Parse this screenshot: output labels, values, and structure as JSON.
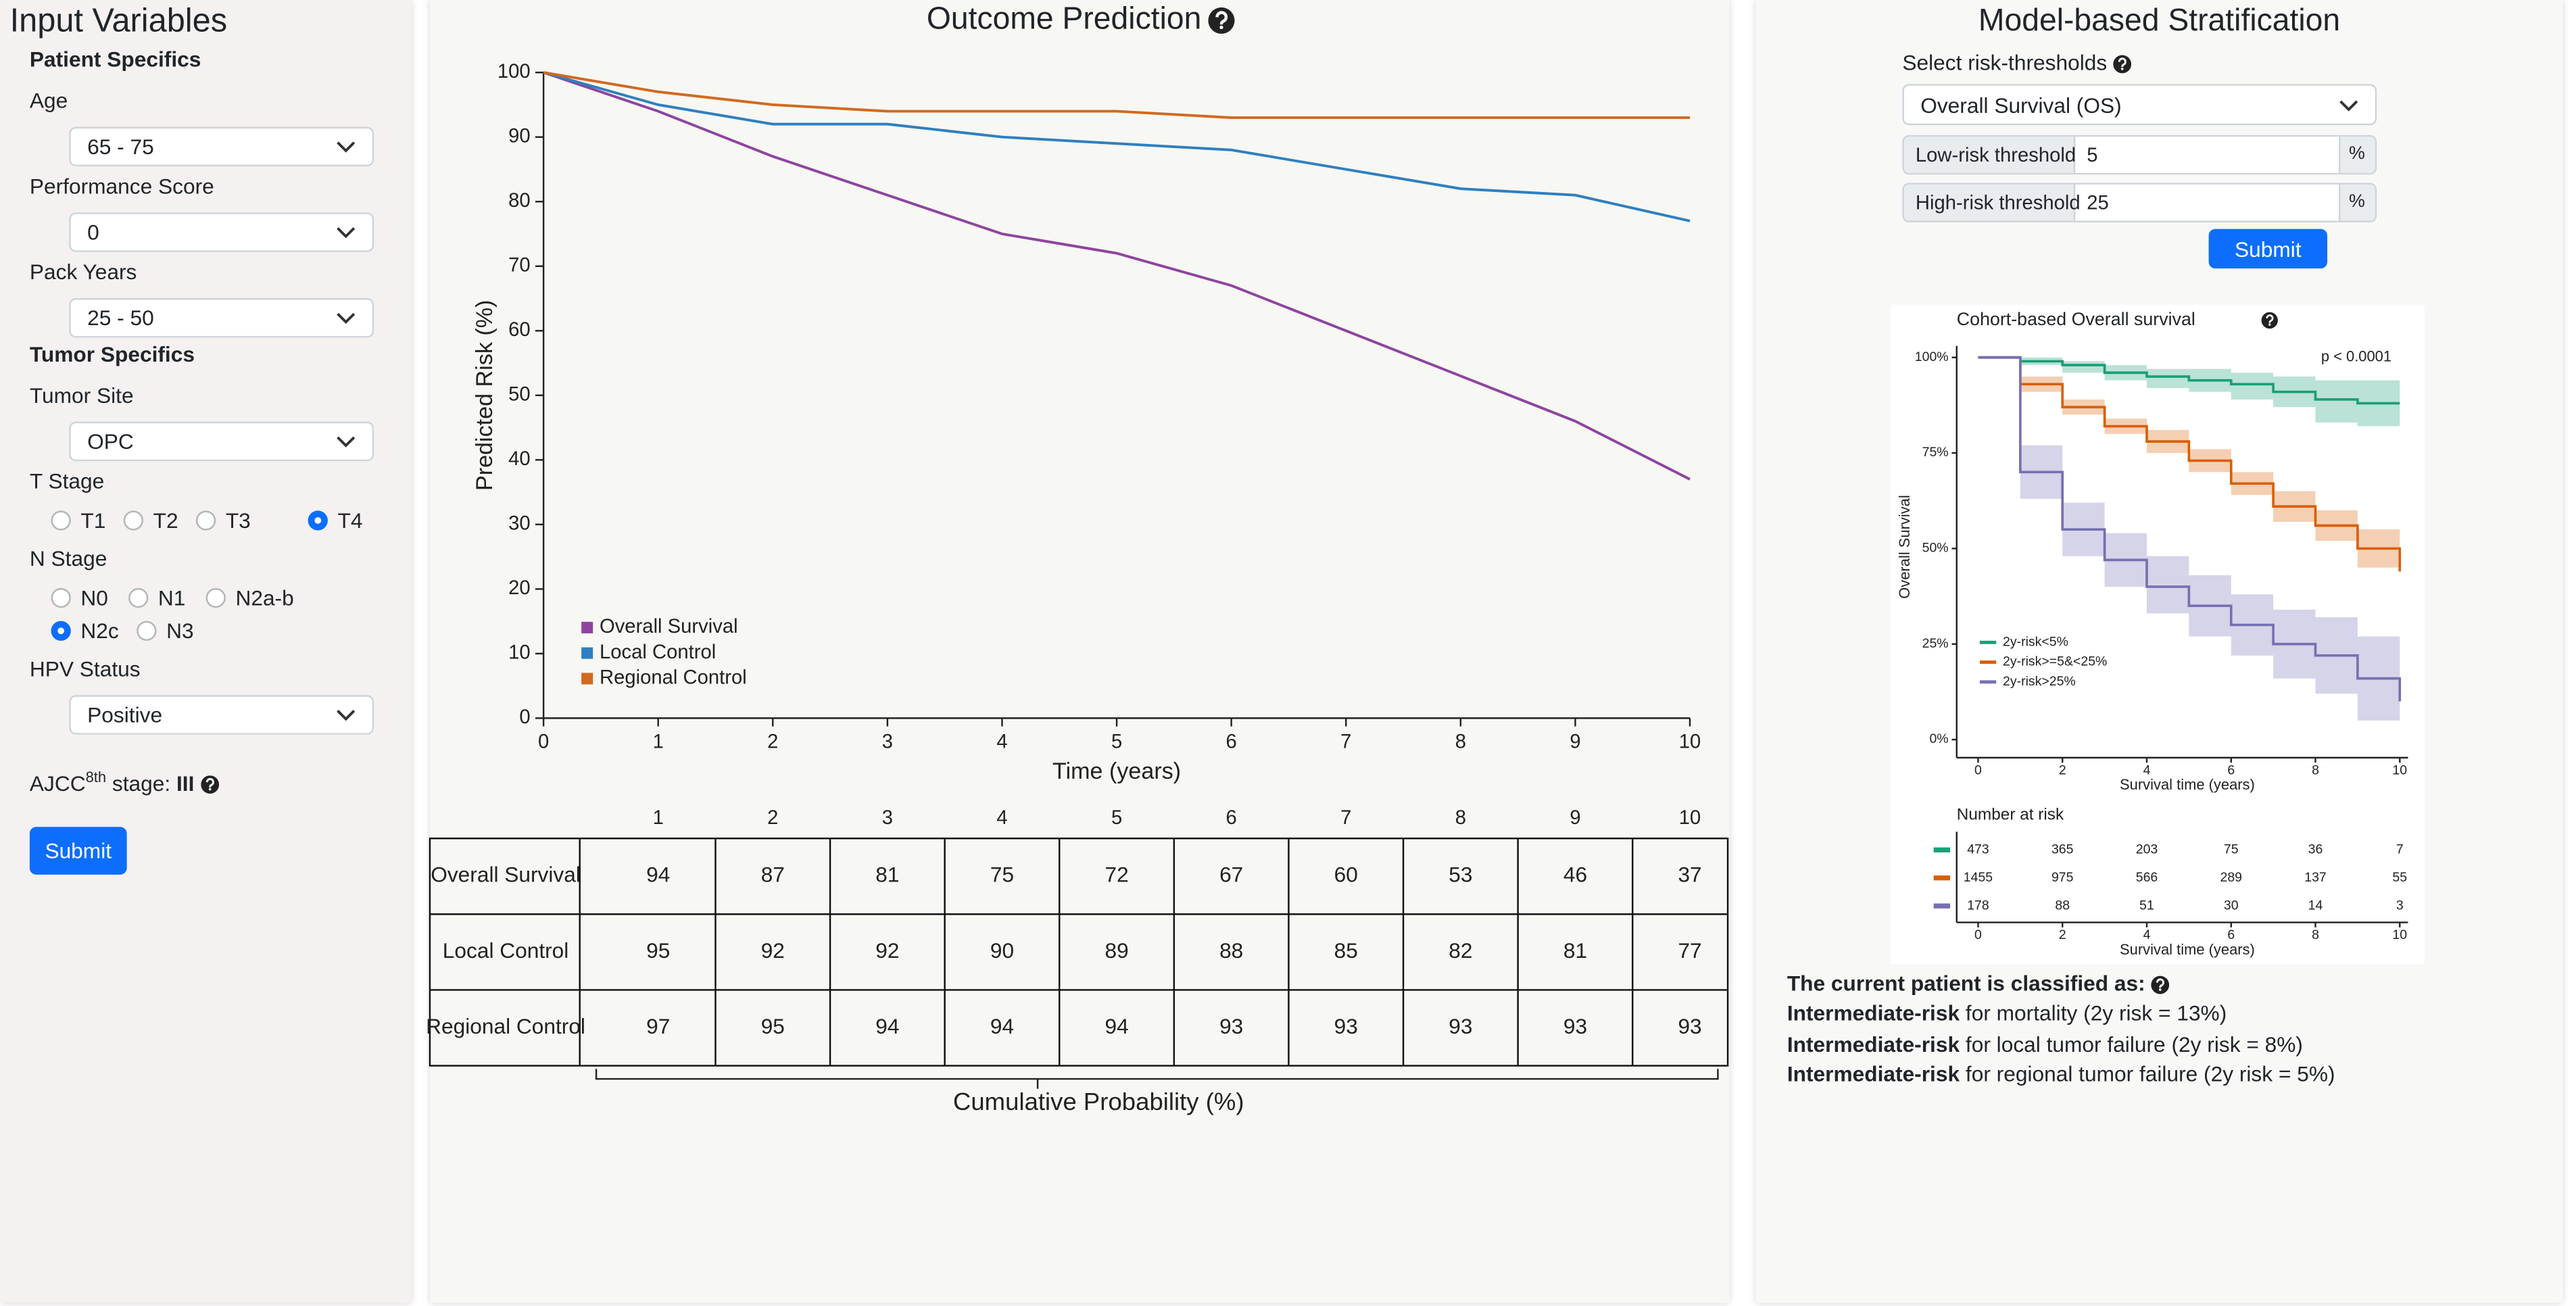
{
  "inputs": {
    "title": "Input Variables",
    "patient_heading": "Patient Specifics",
    "tumor_heading": "Tumor Specifics",
    "fields": [
      {
        "label": "Age",
        "value": "65 - 75"
      },
      {
        "label": "Performance Score",
        "value": "0"
      },
      {
        "label": "Pack Years",
        "value": "25 - 50"
      }
    ],
    "tumor_site": {
      "label": "Tumor Site",
      "value": "OPC"
    },
    "t_stage": {
      "label": "T Stage",
      "options": [
        "T1",
        "T2",
        "T3",
        "T4"
      ],
      "selected": 3
    },
    "n_stage": {
      "label": "N Stage",
      "options": [
        "N0",
        "N1",
        "N2a-b",
        "N2c",
        "N3"
      ],
      "selected": 3
    },
    "hpv": {
      "label": "HPV Status",
      "value": "Positive"
    },
    "ajcc": {
      "prefix": "AJCC",
      "sup": "8th",
      "suffix": " stage: ",
      "stage": "III"
    },
    "submit": "Submit"
  },
  "outcome_table": {
    "columns": [
      1,
      2,
      3,
      4,
      5,
      6,
      7,
      8,
      9,
      10
    ],
    "rows": [
      [
        94,
        87,
        81,
        75,
        72,
        67,
        60,
        53,
        46,
        37
      ],
      [
        95,
        92,
        92,
        90,
        89,
        88,
        85,
        82,
        81,
        77
      ],
      [
        97,
        95,
        94,
        94,
        94,
        93,
        93,
        93,
        93,
        93
      ]
    ],
    "caption": "Cumulative Probability (%)"
  },
  "stratification": {
    "title": "Model-based Stratification",
    "select_label": "Select risk-thresholds",
    "endpoint": "Overall Survival (OS)",
    "low_label": "Low-risk threshold",
    "low_value": "5",
    "high_label": "High-risk threshold",
    "high_value": "25",
    "unit": "%",
    "submit": "Submit",
    "risk_table": {
      "title": "Number at risk",
      "rows": [
        [
          473,
          365,
          203,
          75,
          36,
          7
        ],
        [
          1455,
          975,
          566,
          289,
          137,
          55
        ],
        [
          178,
          88,
          51,
          30,
          14,
          3
        ]
      ]
    },
    "classification": {
      "heading": "The current patient is classified as:",
      "lines": [
        {
          "risk": "Intermediate-risk",
          "text": " for mortality (2y risk = 13%)"
        },
        {
          "risk": "Intermediate-risk",
          "text": " for local tumor failure (2y risk = 8%)"
        },
        {
          "risk": "Intermediate-risk",
          "text": " for regional tumor failure (2y risk = 5%)"
        }
      ]
    }
  },
  "chart_data": [
    {
      "type": "line",
      "title": "Outcome Prediction",
      "xlabel": "Time (years)",
      "ylabel": "Predicted Risk (%)",
      "x": [
        0,
        1,
        2,
        3,
        4,
        5,
        6,
        7,
        8,
        9,
        10
      ],
      "xlim": [
        0,
        10
      ],
      "ylim": [
        0,
        100
      ],
      "xticks": [
        0,
        1,
        2,
        3,
        4,
        5,
        6,
        7,
        8,
        9,
        10
      ],
      "yticks": [
        0,
        10,
        20,
        30,
        40,
        50,
        60,
        70,
        80,
        90,
        100
      ],
      "grid": false,
      "legend": "lower left",
      "series": [
        {
          "name": "Overall Survival",
          "color": "#8e44a0",
          "values": [
            100,
            94,
            87,
            81,
            75,
            72,
            67,
            60,
            53,
            46,
            37
          ]
        },
        {
          "name": "Local Control",
          "color": "#2e7fbf",
          "values": [
            100,
            95,
            92,
            92,
            90,
            89,
            88,
            85,
            82,
            81,
            77
          ]
        },
        {
          "name": "Regional Control",
          "color": "#d2691e",
          "values": [
            100,
            97,
            95,
            94,
            94,
            94,
            93,
            93,
            93,
            93,
            93
          ]
        }
      ]
    },
    {
      "type": "km",
      "title": "Cohort-based Overall survival",
      "xlabel": "Survival time (years)",
      "ylabel": "Overall Survival",
      "annotation": "p < 0.0001",
      "x": [
        0,
        1,
        2,
        3,
        4,
        5,
        6,
        7,
        8,
        9,
        10
      ],
      "xlim": [
        0,
        10
      ],
      "ylim": [
        0,
        100
      ],
      "xticks": [
        0,
        2,
        4,
        6,
        8,
        10
      ],
      "yticks": [
        {
          "value": 0,
          "label": "0%"
        },
        {
          "value": 25,
          "label": "25%"
        },
        {
          "value": 50,
          "label": "50%"
        },
        {
          "value": 75,
          "label": "75%"
        },
        {
          "value": 100,
          "label": "100%"
        }
      ],
      "grid": false,
      "legend": "lower left",
      "series": [
        {
          "name": "2y-risk<5%",
          "color": "#1b9e77",
          "values": [
            100,
            99,
            98,
            96,
            95,
            94,
            93,
            91,
            89,
            88,
            88
          ],
          "lower": [
            100,
            98,
            96,
            94,
            92,
            91,
            89,
            87,
            83,
            82,
            82
          ],
          "upper": [
            100,
            100,
            99,
            98,
            97,
            97,
            96,
            95,
            94,
            94,
            94
          ]
        },
        {
          "name": "2y-risk>=5&<25%",
          "color": "#d95f02",
          "values": [
            100,
            93,
            87,
            82,
            78,
            73,
            67,
            61,
            56,
            50,
            44
          ],
          "lower": [
            100,
            91,
            85,
            80,
            75,
            70,
            64,
            57,
            52,
            45,
            38
          ],
          "upper": [
            100,
            95,
            89,
            84,
            81,
            76,
            70,
            65,
            60,
            55,
            50
          ]
        },
        {
          "name": "2y-risk>25%",
          "color": "#7570b3",
          "values": [
            100,
            70,
            55,
            47,
            40,
            35,
            30,
            25,
            22,
            16,
            10
          ],
          "lower": [
            100,
            63,
            48,
            40,
            33,
            27,
            22,
            16,
            12,
            5,
            0
          ],
          "upper": [
            100,
            77,
            62,
            54,
            48,
            43,
            38,
            34,
            32,
            27,
            22
          ]
        }
      ]
    }
  ]
}
